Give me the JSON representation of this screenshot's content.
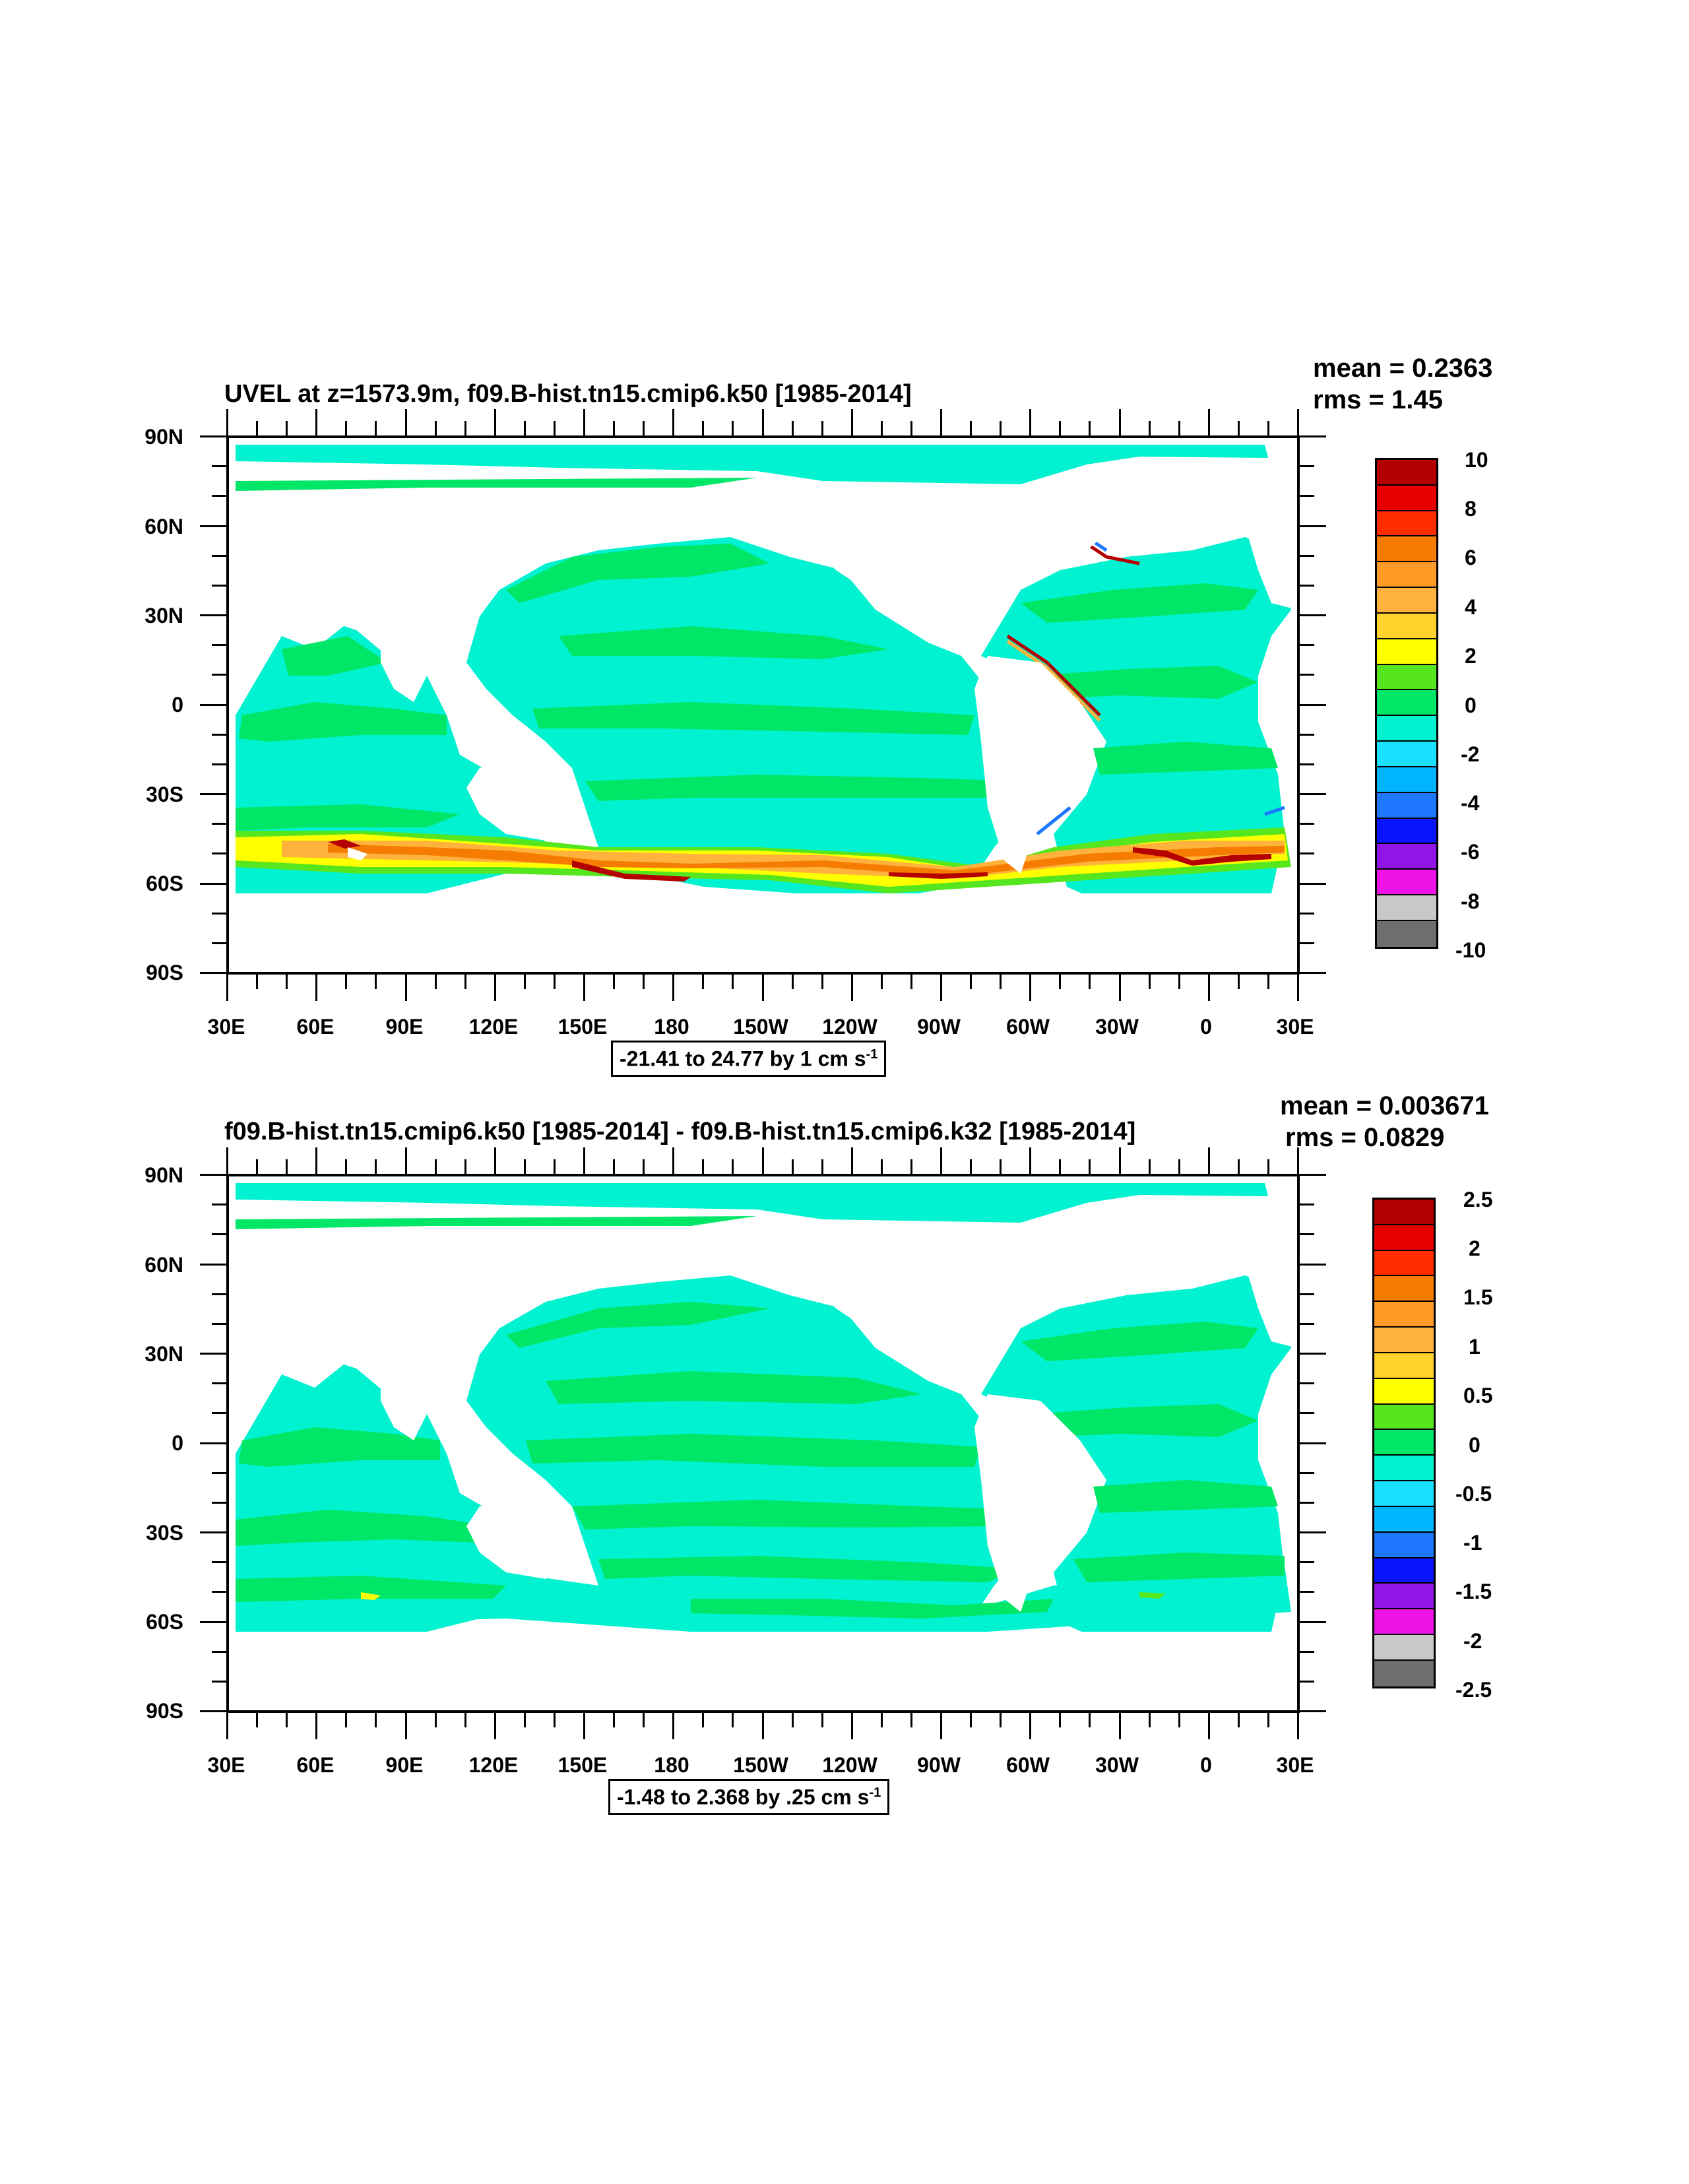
{
  "panels": [
    {
      "title": "UVEL at z=1573.9m, f09.B-hist.tn15.cmip6.k50 [1985-2014]",
      "mean_text": "mean = 0.2363",
      "rms_text": "rms = 1.45",
      "range_prefix": "-21.41 to 24.77 by 1 cm s",
      "range_sup": "-1",
      "colorbar_labels": [
        "10",
        "8",
        "6",
        "4",
        "2",
        "0",
        "-2",
        "-4",
        "-6",
        "-8",
        "-10"
      ],
      "southern_band": "strong"
    },
    {
      "title": "f09.B-hist.tn15.cmip6.k50 [1985-2014] - f09.B-hist.tn15.cmip6.k32 [1985-2014]",
      "mean_text": "mean = 0.003671",
      "rms_text": "rms = 0.0829",
      "range_prefix": "-1.48 to 2.368 by .25 cm s",
      "range_sup": "-1",
      "colorbar_labels": [
        "2.5",
        "2",
        "1.5",
        "1",
        "0.5",
        "0",
        "-0.5",
        "-1",
        "-1.5",
        "-2",
        "-2.5"
      ],
      "southern_band": "weak"
    }
  ],
  "y_axis_labels": [
    "90N",
    "60N",
    "30N",
    "0",
    "30S",
    "60S",
    "90S"
  ],
  "x_axis_labels": [
    "30E",
    "60E",
    "90E",
    "120E",
    "150E",
    "180",
    "150W",
    "120W",
    "90W",
    "60W",
    "30W",
    "0",
    "30E"
  ],
  "colorbar_colors": [
    "#b40000",
    "#e60000",
    "#ff2d00",
    "#f57c00",
    "#ff9a26",
    "#ffb23c",
    "#ffd22c",
    "#ffff00",
    "#55e61e",
    "#00e667",
    "#00f2d0",
    "#19e1ff",
    "#00b4ff",
    "#1e78ff",
    "#0a14ff",
    "#9116e6",
    "#ef12e6",
    "#c8c8c8",
    "#6e6e6e"
  ]
}
